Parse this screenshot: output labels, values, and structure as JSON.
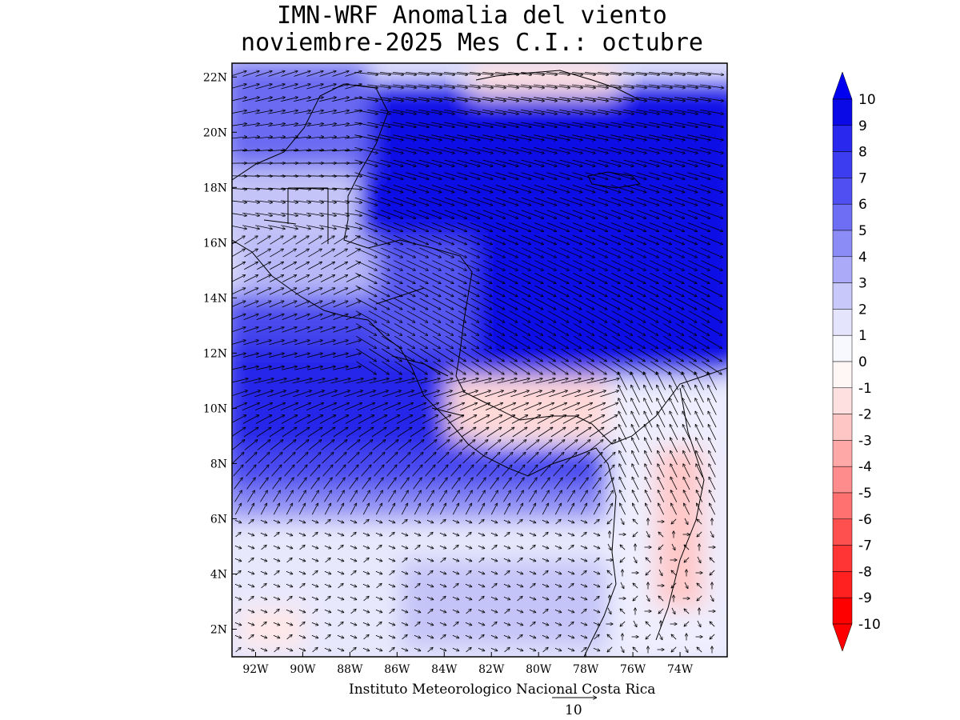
{
  "title": {
    "line1": "IMN-WRF Anomalia del viento",
    "line2": "noviembre-2025 Mes C.I.: octubre"
  },
  "credit": "Instituto Meteorologico Nacional Costa Rica",
  "reference_vector": {
    "label": "10",
    "magnitude": 10
  },
  "map": {
    "lon_range": [
      -93,
      -72
    ],
    "lat_range": [
      1,
      22.5
    ],
    "lat_ticks": [
      {
        "value": 2,
        "label": "2N"
      },
      {
        "value": 4,
        "label": "4N"
      },
      {
        "value": 6,
        "label": "6N"
      },
      {
        "value": 8,
        "label": "8N"
      },
      {
        "value": 10,
        "label": "10N"
      },
      {
        "value": 12,
        "label": "12N"
      },
      {
        "value": 14,
        "label": "14N"
      },
      {
        "value": 16,
        "label": "16N"
      },
      {
        "value": 18,
        "label": "18N"
      },
      {
        "value": 20,
        "label": "20N"
      },
      {
        "value": 22,
        "label": "22N"
      }
    ],
    "lon_ticks": [
      {
        "value": -92,
        "label": "92W"
      },
      {
        "value": -90,
        "label": "90W"
      },
      {
        "value": -88,
        "label": "88W"
      },
      {
        "value": -86,
        "label": "86W"
      },
      {
        "value": -84,
        "label": "84W"
      },
      {
        "value": -82,
        "label": "82W"
      },
      {
        "value": -80,
        "label": "80W"
      },
      {
        "value": -78,
        "label": "78W"
      },
      {
        "value": -76,
        "label": "76W"
      },
      {
        "value": -74,
        "label": "74W"
      }
    ]
  },
  "colorbar": {
    "labels": [
      "10",
      "9",
      "8",
      "7",
      "6",
      "5",
      "4",
      "3",
      "2",
      "1",
      "0",
      "-1",
      "-2",
      "-3",
      "-4",
      "-5",
      "-6",
      "-7",
      "-8",
      "-9",
      "-10"
    ],
    "colors": {
      "max_arrow": "#0000f0",
      "bins": [
        "#0a0ae6",
        "#2828ee",
        "#3c3cf0",
        "#5050f2",
        "#6e6ef4",
        "#8c8cf6",
        "#aaaaf8",
        "#c8c8fa",
        "#e4e4fc",
        "#f8f8ff",
        "#fff6f6",
        "#ffe0e0",
        "#ffc6c6",
        "#ffa8a8",
        "#ff8c8c",
        "#ff7070",
        "#ff5050",
        "#ff3434",
        "#ff2020",
        "#ff0000"
      ],
      "min_arrow": "#ff0000"
    }
  }
}
